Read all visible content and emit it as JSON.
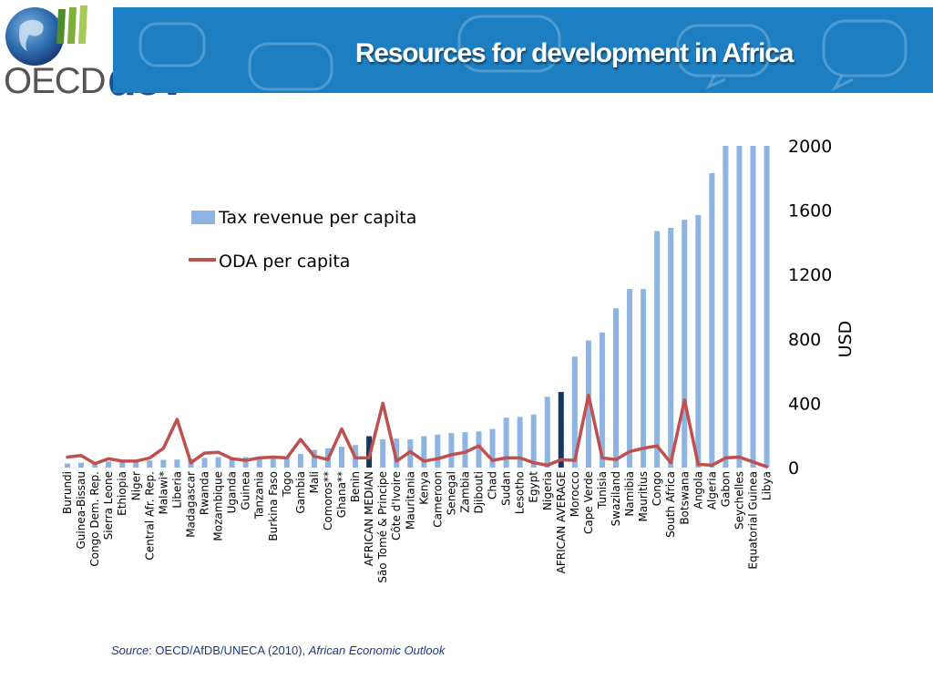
{
  "header": {
    "title": "Resources for development in Africa",
    "logo_text": "OECD",
    "logo_sub": "dev"
  },
  "colors": {
    "banner": "#1d7fc2",
    "bar": "#8db4e2",
    "bar_highlight": "#17375e",
    "line": "#c0504d"
  },
  "source": {
    "label": "Source",
    "text": ": OECD/AfDB/UNECA (2010), ",
    "publication": "African Economic Outlook"
  },
  "chart_data": {
    "type": "bar",
    "title": "",
    "ylabel": "USD",
    "ylim": [
      0,
      2000
    ],
    "yticks": [
      "0",
      "400",
      "800",
      "1200",
      "1600",
      "2000"
    ],
    "legend_position": "top-left",
    "categories": [
      "Burundi",
      "Guinea-Bissau",
      "Congo Dem. Rep.",
      "Sierra Leone",
      "Ethiopia",
      "Niger",
      "Central Afr. Rep.",
      "Malawi*",
      "Liberia",
      "Madagascar",
      "Rwanda",
      "Mozambique",
      "Uganda",
      "Guinea",
      "Tanzania",
      "Burkina Faso",
      "Togo",
      "Gambia",
      "Mali",
      "Comoros**",
      "Ghana**",
      "Benin",
      "AFRICAN MEDIAN",
      "São Tomé & Principe",
      "Côte d'Ivoire",
      "Mauritania",
      "Kenya",
      "Cameroon",
      "Senegal",
      "Zambia",
      "Djibouti",
      "Chad",
      "Sudan",
      "Lesotho",
      "Egypt",
      "Nigeria",
      "AFRICAN AVERAGE",
      "Morocco",
      "Cape Verde",
      "Tunisia",
      "Swaziland",
      "Namibia",
      "Mauritius",
      "Congo",
      "South Africa",
      "Botswana",
      "Angola",
      "Algeria",
      "Gabon",
      "Seychelles",
      "Equatorial Guinea",
      "Libya"
    ],
    "highlight": [
      "AFRICAN MEDIAN",
      "AFRICAN AVERAGE"
    ],
    "series": [
      {
        "name": "Tax revenue per capita",
        "type": "bar",
        "values": [
          25,
          30,
          33,
          37,
          40,
          42,
          45,
          48,
          50,
          55,
          60,
          65,
          60,
          65,
          60,
          65,
          70,
          85,
          110,
          120,
          130,
          140,
          195,
          175,
          180,
          175,
          195,
          205,
          215,
          220,
          225,
          240,
          310,
          315,
          330,
          440,
          470,
          690,
          790,
          840,
          990,
          1110,
          1110,
          1470,
          1490,
          1540,
          1570,
          1830,
          2000,
          2000,
          2000,
          2000
        ]
      },
      {
        "name": "ODA per capita",
        "type": "line",
        "values": [
          65,
          75,
          25,
          55,
          40,
          40,
          60,
          120,
          300,
          30,
          90,
          95,
          55,
          45,
          60,
          65,
          60,
          175,
          70,
          50,
          240,
          60,
          60,
          400,
          40,
          100,
          40,
          55,
          80,
          95,
          135,
          45,
          60,
          60,
          30,
          15,
          50,
          45,
          450,
          60,
          50,
          100,
          120,
          135,
          30,
          420,
          20,
          15,
          60,
          65,
          35,
          5
        ]
      }
    ]
  }
}
